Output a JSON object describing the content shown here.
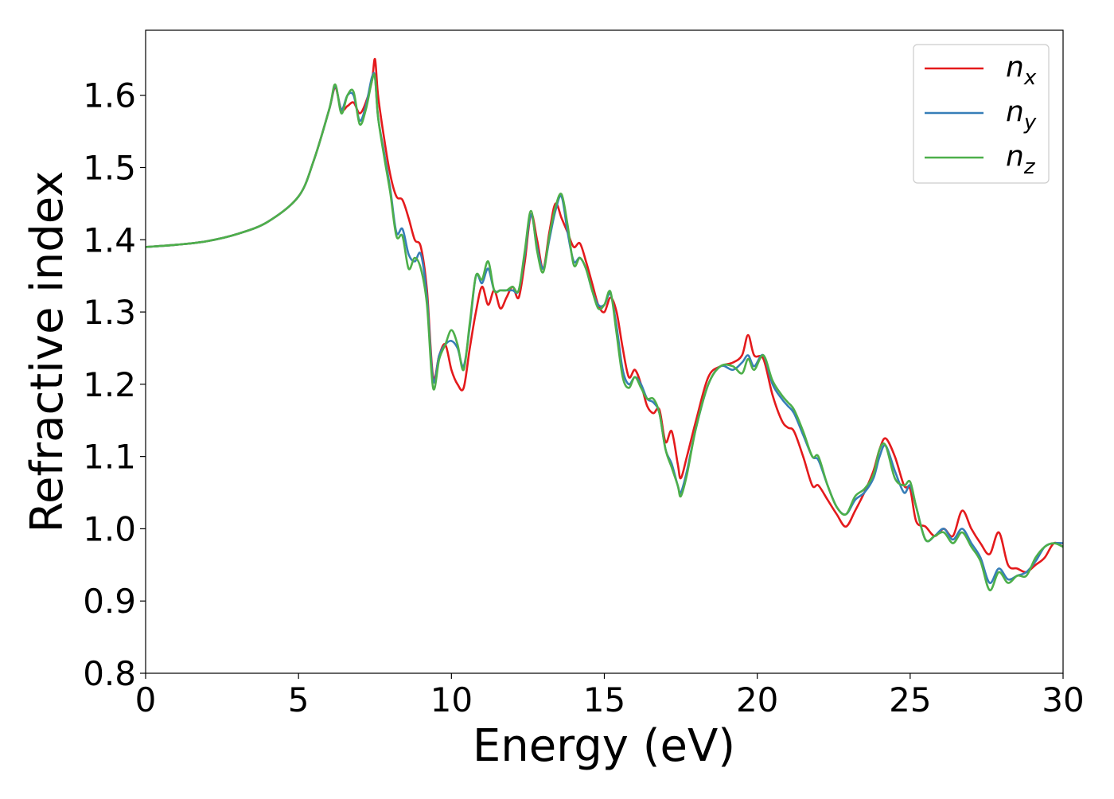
{
  "chart_data": {
    "type": "line",
    "title": "",
    "xlabel": "Energy (eV)",
    "ylabel": "Refractive index",
    "xlim": [
      0,
      30
    ],
    "ylim": [
      0.8,
      1.69
    ],
    "xticks": [
      0,
      5,
      10,
      15,
      20,
      25,
      30
    ],
    "xtick_labels": [
      "0",
      "5",
      "10",
      "15",
      "20",
      "25",
      "30"
    ],
    "yticks": [
      0.8,
      0.9,
      1.0,
      1.1,
      1.2,
      1.3,
      1.4,
      1.5,
      1.6
    ],
    "ytick_labels": [
      "0.8",
      "0.9",
      "1.0",
      "1.1",
      "1.2",
      "1.3",
      "1.4",
      "1.5",
      "1.6"
    ],
    "grid": false,
    "legend_position": "top-right",
    "series": [
      {
        "name": "n",
        "subscript": "x",
        "color": "#e41a1c",
        "x": [
          0,
          1,
          2,
          3,
          4,
          5,
          5.5,
          6.0,
          6.2,
          6.4,
          6.6,
          6.8,
          7.0,
          7.2,
          7.4,
          7.5,
          7.6,
          7.8,
          8.0,
          8.2,
          8.4,
          8.6,
          8.8,
          9.0,
          9.2,
          9.4,
          9.6,
          9.8,
          10.0,
          10.2,
          10.4,
          10.6,
          10.8,
          11.0,
          11.2,
          11.4,
          11.6,
          11.8,
          12.0,
          12.2,
          12.4,
          12.6,
          12.8,
          13.0,
          13.2,
          13.4,
          13.6,
          13.8,
          14.0,
          14.2,
          14.4,
          14.6,
          14.8,
          15.0,
          15.2,
          15.4,
          15.6,
          15.8,
          16.0,
          16.2,
          16.4,
          16.6,
          16.8,
          17.0,
          17.2,
          17.4,
          17.5,
          17.7,
          18.0,
          18.4,
          18.8,
          19.2,
          19.5,
          19.7,
          19.9,
          20.2,
          20.5,
          20.8,
          21.0,
          21.2,
          21.5,
          21.8,
          22.0,
          22.3,
          22.6,
          22.9,
          23.2,
          23.5,
          23.8,
          24.0,
          24.2,
          24.5,
          24.8,
          25.0,
          25.2,
          25.5,
          25.8,
          26.1,
          26.4,
          26.7,
          27.0,
          27.3,
          27.6,
          27.9,
          28.2,
          28.5,
          28.8,
          29.1,
          29.4,
          29.7,
          30.0
        ],
        "y": [
          1.39,
          1.393,
          1.398,
          1.408,
          1.425,
          1.46,
          1.51,
          1.58,
          1.61,
          1.58,
          1.585,
          1.59,
          1.575,
          1.59,
          1.62,
          1.65,
          1.6,
          1.54,
          1.49,
          1.46,
          1.455,
          1.43,
          1.4,
          1.39,
          1.33,
          1.21,
          1.24,
          1.255,
          1.22,
          1.2,
          1.195,
          1.25,
          1.3,
          1.335,
          1.31,
          1.33,
          1.305,
          1.32,
          1.335,
          1.32,
          1.37,
          1.435,
          1.4,
          1.36,
          1.41,
          1.45,
          1.43,
          1.41,
          1.39,
          1.395,
          1.37,
          1.34,
          1.31,
          1.3,
          1.32,
          1.3,
          1.25,
          1.21,
          1.22,
          1.2,
          1.17,
          1.16,
          1.165,
          1.12,
          1.135,
          1.09,
          1.07,
          1.1,
          1.15,
          1.21,
          1.225,
          1.23,
          1.24,
          1.268,
          1.24,
          1.235,
          1.185,
          1.15,
          1.14,
          1.135,
          1.1,
          1.06,
          1.06,
          1.04,
          1.02,
          1.003,
          1.025,
          1.05,
          1.08,
          1.11,
          1.125,
          1.1,
          1.06,
          1.055,
          1.01,
          1.003,
          0.99,
          1.0,
          0.99,
          1.025,
          1.0,
          0.98,
          0.965,
          0.995,
          0.95,
          0.945,
          0.94,
          0.95,
          0.96,
          0.98,
          0.975
        ]
      },
      {
        "name": "n",
        "subscript": "y",
        "color": "#377eb8",
        "x": [
          0,
          1,
          2,
          3,
          4,
          5,
          5.5,
          6.0,
          6.2,
          6.4,
          6.6,
          6.8,
          7.0,
          7.2,
          7.4,
          7.5,
          7.6,
          7.8,
          8.0,
          8.2,
          8.4,
          8.6,
          8.8,
          9.0,
          9.2,
          9.4,
          9.6,
          9.8,
          10.0,
          10.2,
          10.4,
          10.6,
          10.8,
          11.0,
          11.2,
          11.4,
          11.6,
          11.8,
          12.0,
          12.2,
          12.4,
          12.6,
          12.8,
          13.0,
          13.2,
          13.4,
          13.6,
          13.8,
          14.0,
          14.2,
          14.4,
          14.6,
          14.8,
          15.0,
          15.2,
          15.4,
          15.6,
          15.8,
          16.0,
          16.2,
          16.4,
          16.6,
          16.8,
          17.0,
          17.2,
          17.4,
          17.5,
          17.7,
          18.0,
          18.4,
          18.8,
          19.2,
          19.5,
          19.7,
          19.9,
          20.2,
          20.5,
          20.8,
          21.0,
          21.2,
          21.5,
          21.8,
          22.0,
          22.3,
          22.6,
          22.9,
          23.2,
          23.5,
          23.8,
          24.0,
          24.2,
          24.5,
          24.8,
          25.0,
          25.2,
          25.5,
          25.8,
          26.1,
          26.4,
          26.7,
          27.0,
          27.3,
          27.6,
          27.9,
          28.2,
          28.5,
          28.8,
          29.1,
          29.4,
          29.7,
          30.0
        ],
        "y": [
          1.39,
          1.393,
          1.398,
          1.408,
          1.425,
          1.46,
          1.51,
          1.58,
          1.612,
          1.58,
          1.6,
          1.6,
          1.565,
          1.585,
          1.625,
          1.625,
          1.57,
          1.52,
          1.47,
          1.41,
          1.415,
          1.38,
          1.37,
          1.38,
          1.32,
          1.205,
          1.24,
          1.255,
          1.26,
          1.25,
          1.225,
          1.28,
          1.35,
          1.34,
          1.36,
          1.33,
          1.33,
          1.33,
          1.33,
          1.33,
          1.38,
          1.435,
          1.39,
          1.36,
          1.4,
          1.44,
          1.46,
          1.41,
          1.37,
          1.375,
          1.36,
          1.33,
          1.31,
          1.31,
          1.325,
          1.28,
          1.22,
          1.2,
          1.21,
          1.2,
          1.18,
          1.175,
          1.16,
          1.11,
          1.09,
          1.06,
          1.05,
          1.08,
          1.14,
          1.2,
          1.225,
          1.22,
          1.23,
          1.24,
          1.225,
          1.24,
          1.2,
          1.18,
          1.17,
          1.16,
          1.13,
          1.1,
          1.095,
          1.06,
          1.03,
          1.02,
          1.04,
          1.05,
          1.07,
          1.1,
          1.115,
          1.08,
          1.05,
          1.06,
          1.03,
          0.985,
          0.99,
          1.0,
          0.985,
          1.0,
          0.98,
          0.96,
          0.925,
          0.945,
          0.93,
          0.935,
          0.94,
          0.955,
          0.975,
          0.98,
          0.98
        ]
      },
      {
        "name": "n",
        "subscript": "z",
        "color": "#4daf4a",
        "x": [
          0,
          1,
          2,
          3,
          4,
          5,
          5.5,
          6.0,
          6.2,
          6.4,
          6.6,
          6.8,
          7.0,
          7.2,
          7.4,
          7.5,
          7.6,
          7.8,
          8.0,
          8.2,
          8.4,
          8.6,
          8.8,
          9.0,
          9.2,
          9.4,
          9.6,
          9.8,
          10.0,
          10.2,
          10.4,
          10.6,
          10.8,
          11.0,
          11.2,
          11.4,
          11.6,
          11.8,
          12.0,
          12.2,
          12.4,
          12.6,
          12.8,
          13.0,
          13.2,
          13.4,
          13.6,
          13.8,
          14.0,
          14.2,
          14.4,
          14.6,
          14.8,
          15.0,
          15.2,
          15.4,
          15.6,
          15.8,
          16.0,
          16.2,
          16.4,
          16.6,
          16.8,
          17.0,
          17.2,
          17.4,
          17.5,
          17.7,
          18.0,
          18.4,
          18.8,
          19.2,
          19.5,
          19.7,
          19.9,
          20.2,
          20.5,
          20.8,
          21.0,
          21.2,
          21.5,
          21.8,
          22.0,
          22.3,
          22.6,
          22.9,
          23.2,
          23.5,
          23.8,
          24.0,
          24.2,
          24.5,
          24.8,
          25.0,
          25.2,
          25.5,
          25.8,
          26.1,
          26.4,
          26.7,
          27.0,
          27.3,
          27.6,
          27.9,
          28.2,
          28.5,
          28.8,
          29.1,
          29.4,
          29.7,
          30.0
        ],
        "y": [
          1.39,
          1.393,
          1.398,
          1.408,
          1.425,
          1.46,
          1.51,
          1.58,
          1.615,
          1.575,
          1.6,
          1.605,
          1.56,
          1.58,
          1.62,
          1.625,
          1.57,
          1.515,
          1.465,
          1.405,
          1.405,
          1.36,
          1.375,
          1.36,
          1.31,
          1.195,
          1.235,
          1.255,
          1.275,
          1.255,
          1.22,
          1.285,
          1.35,
          1.345,
          1.37,
          1.33,
          1.33,
          1.33,
          1.335,
          1.33,
          1.385,
          1.44,
          1.385,
          1.355,
          1.405,
          1.445,
          1.463,
          1.42,
          1.365,
          1.375,
          1.36,
          1.33,
          1.305,
          1.31,
          1.328,
          1.27,
          1.21,
          1.195,
          1.21,
          1.195,
          1.18,
          1.18,
          1.16,
          1.11,
          1.085,
          1.06,
          1.045,
          1.075,
          1.14,
          1.2,
          1.225,
          1.225,
          1.215,
          1.235,
          1.22,
          1.24,
          1.205,
          1.185,
          1.175,
          1.165,
          1.135,
          1.1,
          1.1,
          1.06,
          1.03,
          1.02,
          1.045,
          1.055,
          1.075,
          1.11,
          1.115,
          1.07,
          1.06,
          1.065,
          1.03,
          0.985,
          0.99,
          0.995,
          0.98,
          0.995,
          0.975,
          0.955,
          0.915,
          0.94,
          0.925,
          0.935,
          0.935,
          0.96,
          0.975,
          0.98,
          0.975
        ]
      }
    ]
  }
}
